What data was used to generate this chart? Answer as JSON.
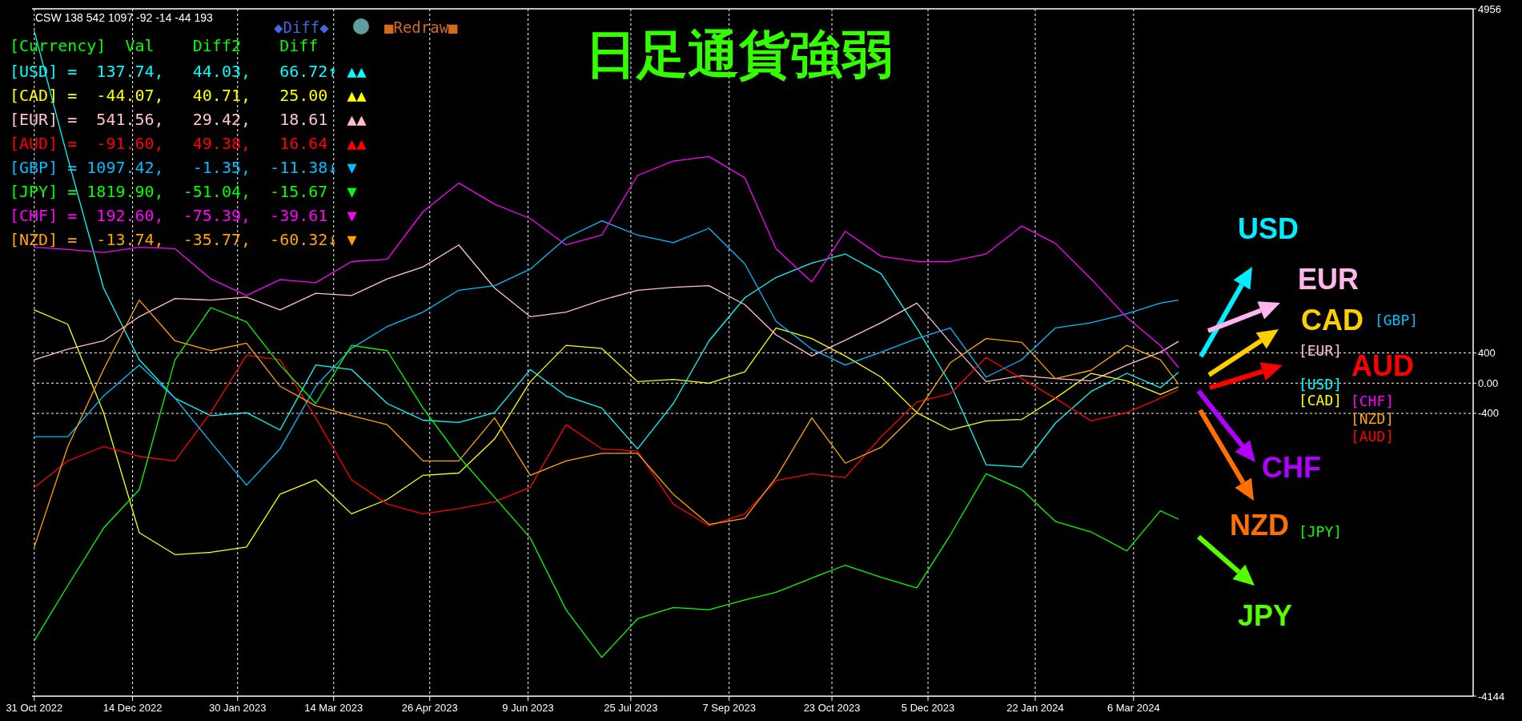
{
  "chart_data": {
    "type": "line",
    "title": "日足通貨強弱",
    "annotations": [
      "CSW 138 542 1097 -92 -14 -44 193",
      "◆Diff◆",
      "■Redraw■",
      "[Currency]  Val    Diff2    Diff",
      "[USD] =  137.74,   44.03,   66.72↑ ▲▲",
      "[CAD] =  -44.07,   40.71,   25.00  ▲▲",
      "[EUR] =  541.56,   29.42,   18.61  ▲▲",
      "[AUD] =  -91.60,   49.38,   16.64  ▲▲",
      "[GBP] = 1097.42,   -1.35,  -11.38↓ ▼",
      "[JPY] = 1819.90,  -51.04,  -15.67  ▼",
      "[CHF] =  192.60,  -75.39,  -39.61  ▼",
      "[NZD] =  -13.74,  -35.77,  -60.32↓ ▼",
      "USD",
      "EUR",
      "CAD",
      "AUD",
      "CHF",
      "NZD",
      "JPY",
      "[GBP]",
      "[EUR]",
      "[CHF]",
      "[USD]",
      "[NZD]",
      "[AUD]",
      "[CAD]",
      "[JPY]"
    ],
    "x": [
      "2022-10-31",
      "2022-11-15",
      "2022-12-01",
      "2022-12-17",
      "2023-01-02",
      "2023-01-18",
      "2023-02-03",
      "2023-02-18",
      "2023-03-06",
      "2023-03-22",
      "2023-04-07",
      "2023-04-23",
      "2023-05-09",
      "2023-05-25",
      "2023-06-10",
      "2023-06-26",
      "2023-07-12",
      "2023-07-28",
      "2023-08-13",
      "2023-08-29",
      "2023-09-14",
      "2023-09-28",
      "2023-10-14",
      "2023-10-29",
      "2023-11-14",
      "2023-11-30",
      "2023-12-15",
      "2023-12-31",
      "2024-01-16",
      "2024-01-31",
      "2024-02-16",
      "2024-03-03",
      "2024-03-18",
      "2024-03-26"
    ],
    "series": [
      {
        "color": "#00ffff",
        "values": [
          4660,
          2980,
          1260,
          310,
          -200,
          -430,
          -390,
          -620,
          240,
          180,
          -270,
          -490,
          -520,
          -390,
          180,
          -170,
          -330,
          -870,
          -270,
          560,
          1130,
          1400,
          1590,
          1710,
          1450,
          730,
          -10,
          -1080,
          -1110,
          -530,
          -110,
          130,
          -60,
          140
        ]
      },
      {
        "color": "#ffff00",
        "values": [
          970,
          780,
          -390,
          -1980,
          -2270,
          -2240,
          -2170,
          -1470,
          -1280,
          -1730,
          -1540,
          -1220,
          -1190,
          -740,
          20,
          500,
          460,
          20,
          50,
          0,
          150,
          730,
          590,
          360,
          80,
          -390,
          -620,
          -500,
          -480,
          -200,
          130,
          30,
          -150,
          -50
        ]
      },
      {
        "color": "#ffc0cb",
        "values": [
          310,
          450,
          560,
          880,
          1120,
          1100,
          1140,
          970,
          1190,
          1160,
          1380,
          1540,
          1830,
          1260,
          880,
          940,
          1100,
          1230,
          1270,
          1290,
          1040,
          640,
          360,
          570,
          800,
          1060,
          540,
          20,
          100,
          60,
          30,
          240,
          410,
          550
        ]
      },
      {
        "color": "#ff0000",
        "values": [
          -1380,
          -1030,
          -840,
          -970,
          -1030,
          -390,
          370,
          310,
          -460,
          -1280,
          -1600,
          -1730,
          -1660,
          -1570,
          -1380,
          -550,
          -870,
          -900,
          -1600,
          -1890,
          -1730,
          -1290,
          -1200,
          -1250,
          -710,
          -250,
          -140,
          340,
          60,
          -200,
          -500,
          -390,
          -200,
          -90
        ]
      },
      {
        "color": "#00bfff",
        "values": [
          -710,
          -710,
          -170,
          240,
          -200,
          -780,
          -1350,
          -870,
          -40,
          460,
          750,
          940,
          1230,
          1290,
          1510,
          1920,
          2150,
          1960,
          1860,
          2050,
          1580,
          820,
          450,
          240,
          410,
          590,
          730,
          80,
          310,
          730,
          800,
          920,
          1060,
          1100
        ]
      },
      {
        "color": "#00ff00",
        "values": [
          -3410,
          -2680,
          -1920,
          -1410,
          310,
          1000,
          810,
          240,
          -270,
          500,
          430,
          -330,
          -970,
          -1510,
          -2050,
          -3000,
          -3630,
          -3120,
          -2970,
          -3000,
          -2870,
          -2770,
          -2580,
          -2410,
          -2570,
          -2710,
          -2010,
          -1200,
          -1410,
          -1830,
          -1970,
          -2220,
          -1690,
          -1800
        ]
      },
      {
        "color": "#ff00ff",
        "values": [
          1800,
          1770,
          1730,
          1800,
          1780,
          1380,
          1160,
          1370,
          1330,
          1610,
          1640,
          2270,
          2650,
          2370,
          2180,
          1830,
          1960,
          2750,
          2940,
          3000,
          2720,
          1780,
          1340,
          2010,
          1680,
          1610,
          1610,
          1710,
          2080,
          1850,
          1380,
          870,
          500,
          210
        ]
      },
      {
        "color": "#ffa500",
        "values": [
          -2170,
          -840,
          180,
          1100,
          560,
          430,
          530,
          -40,
          -300,
          -430,
          -550,
          -1030,
          -1030,
          -460,
          -1220,
          -1030,
          -930,
          -930,
          -1470,
          -1870,
          -1790,
          -1250,
          -460,
          -1060,
          -850,
          -390,
          270,
          590,
          540,
          60,
          170,
          500,
          310,
          -10
        ]
      }
    ],
    "xlim": [
      "2022-10-30",
      "2024-08-05"
    ],
    "ylim": [
      -4144,
      4956
    ],
    "xticks": [
      {
        "value": "2022-10-31",
        "label": "31 Oct 2022"
      },
      {
        "value": "2022-12-14",
        "label": "14 Dec 2022"
      },
      {
        "value": "2023-01-30",
        "label": "30 Jan 2023"
      },
      {
        "value": "2023-03-14",
        "label": "14 Mar 2023"
      },
      {
        "value": "2023-04-26",
        "label": "26 Apr 2023"
      },
      {
        "value": "2023-06-09",
        "label": "9 Jun 2023"
      },
      {
        "value": "2023-07-25",
        "label": "25 Jul 2023"
      },
      {
        "value": "2023-09-07",
        "label": "7 Sep 2023"
      },
      {
        "value": "2023-10-23",
        "label": "23 Oct 2023"
      },
      {
        "value": "2023-12-05",
        "label": "5 Dec 2023"
      },
      {
        "value": "2024-01-22",
        "label": "22 Jan 2024"
      },
      {
        "value": "2024-03-06",
        "label": "6 Mar 2024"
      }
    ],
    "yticks": [
      4956,
      400,
      {
        "value": 0,
        "label": "0.00"
      },
      -400,
      -4144
    ],
    "grid": true
  }
}
